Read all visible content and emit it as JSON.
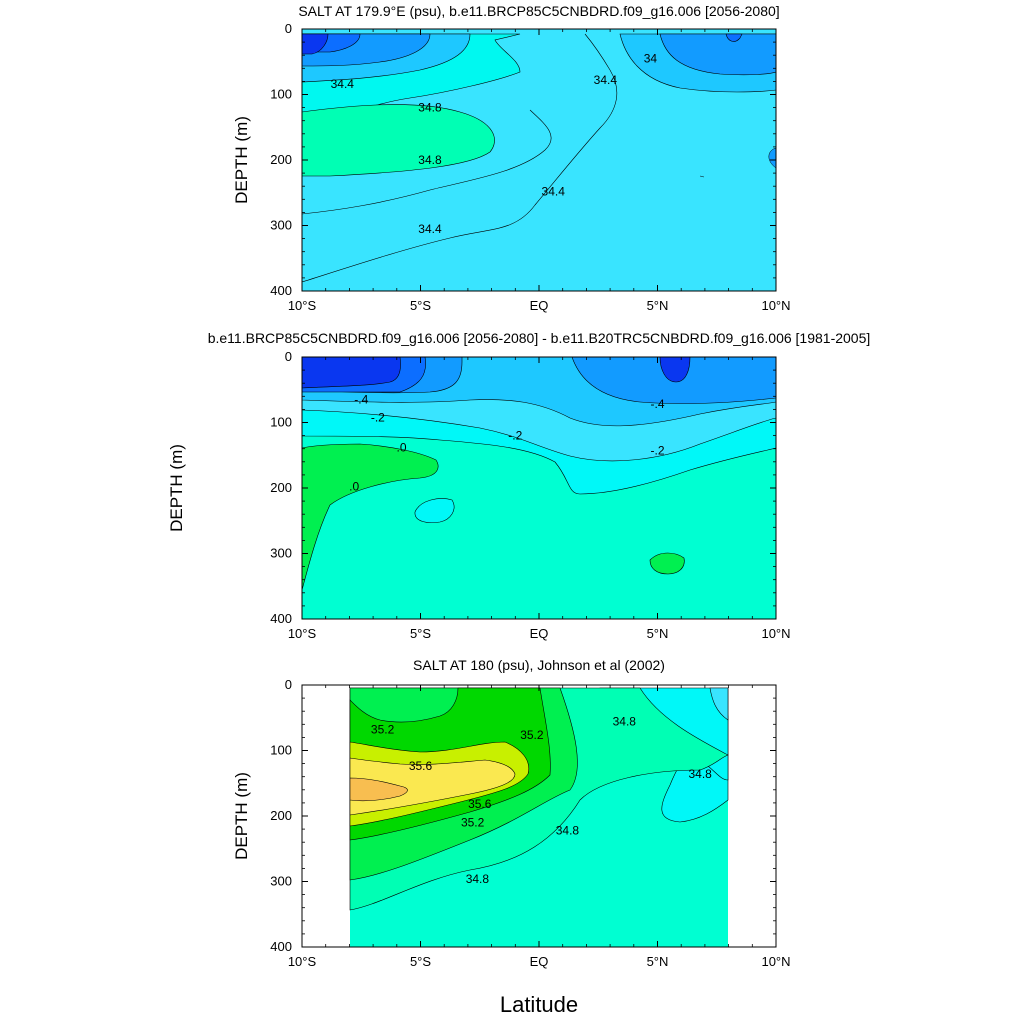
{
  "chart_data": [
    {
      "type": "contour",
      "title": "SALT AT 179.9°E (psu), b.e11.BRCP85C5CNBDRD.f09_g16.006 [2056-2080]",
      "ylabel": "DEPTH (m)",
      "xlabel": "",
      "xlim": [
        -10,
        10
      ],
      "ylim": [
        400,
        0
      ],
      "x_ticks": [
        {
          "value": -10,
          "label": "10°S"
        },
        {
          "value": -5,
          "label": "5°S"
        },
        {
          "value": 0,
          "label": "EQ"
        },
        {
          "value": 5,
          "label": "5°N"
        },
        {
          "value": 10,
          "label": "10°N"
        }
      ],
      "y_ticks": [
        0,
        100,
        200,
        300,
        400
      ],
      "levels": [
        33.6,
        33.8,
        34.0,
        34.2,
        34.4,
        34.6,
        34.8,
        35.0
      ],
      "contour_labels": [
        {
          "text": "34.4",
          "lon": -8.3,
          "depth": 84
        },
        {
          "text": "34.8",
          "lon": -4.6,
          "depth": 120
        },
        {
          "text": "34.8",
          "lon": -4.6,
          "depth": 200
        },
        {
          "text": "34.4",
          "lon": -4.6,
          "depth": 305
        },
        {
          "text": "34.4",
          "lon": 0.6,
          "depth": 248
        },
        {
          "text": "34.4",
          "lon": 2.8,
          "depth": 78
        },
        {
          "text": "34",
          "lon": 4.7,
          "depth": 45
        }
      ]
    },
    {
      "type": "contour",
      "title": "b.e11.BRCP85C5CNBDRD.f09_g16.006 [2056-2080] - b.e11.B20TRC5CNBDRD.f09_g16.006 [1981-2005]",
      "ylabel": "DEPTH (m)",
      "xlabel": "",
      "xlim": [
        -10,
        10
      ],
      "ylim": [
        400,
        0
      ],
      "x_ticks": [
        {
          "value": -10,
          "label": "10°S"
        },
        {
          "value": -5,
          "label": "5°S"
        },
        {
          "value": 0,
          "label": "EQ"
        },
        {
          "value": 5,
          "label": "5°N"
        },
        {
          "value": 10,
          "label": "10°N"
        }
      ],
      "y_ticks": [
        0,
        100,
        200,
        300,
        400
      ],
      "levels": [
        -0.8,
        -0.6,
        -0.4,
        -0.3,
        -0.2,
        -0.1,
        0.0,
        0.1
      ],
      "contour_labels": [
        {
          "text": "-.4",
          "lon": -7.5,
          "depth": 65
        },
        {
          "text": "-.2",
          "lon": -6.8,
          "depth": 92
        },
        {
          "text": "-.2",
          "lon": -1.0,
          "depth": 120
        },
        {
          "text": "-.4",
          "lon": 5.0,
          "depth": 72
        },
        {
          "text": "-.2",
          "lon": 5.0,
          "depth": 143
        },
        {
          "text": ".0",
          "lon": -5.8,
          "depth": 138
        },
        {
          "text": ".0",
          "lon": -7.8,
          "depth": 198
        }
      ]
    },
    {
      "type": "contour",
      "title": "SALT AT 180 (psu), Johnson et al (2002)",
      "ylabel": "DEPTH (m)",
      "xlabel": "Latitude",
      "xlim": [
        -10,
        10
      ],
      "ylim": [
        400,
        0
      ],
      "x_ticks": [
        {
          "value": -10,
          "label": "10°S"
        },
        {
          "value": -5,
          "label": "5°S"
        },
        {
          "value": 0,
          "label": "EQ"
        },
        {
          "value": 5,
          "label": "5°N"
        },
        {
          "value": 10,
          "label": "10°N"
        }
      ],
      "y_ticks": [
        0,
        100,
        200,
        300,
        400
      ],
      "data_extent": [
        -8,
        8
      ],
      "levels": [
        34.4,
        34.6,
        34.8,
        35.0,
        35.2,
        35.4,
        35.6,
        35.8
      ],
      "contour_labels": [
        {
          "text": "35.2",
          "lon": -6.6,
          "depth": 68
        },
        {
          "text": "35.6",
          "lon": -5.0,
          "depth": 124
        },
        {
          "text": "35.6",
          "lon": -2.5,
          "depth": 182
        },
        {
          "text": "35.2",
          "lon": -2.8,
          "depth": 210
        },
        {
          "text": "35.2",
          "lon": -0.3,
          "depth": 76
        },
        {
          "text": "34.8",
          "lon": -2.6,
          "depth": 296
        },
        {
          "text": "34.8",
          "lon": 1.2,
          "depth": 222
        },
        {
          "text": "34.8",
          "lon": 3.6,
          "depth": 56
        },
        {
          "text": "34.8",
          "lon": 6.8,
          "depth": 136
        }
      ]
    }
  ]
}
